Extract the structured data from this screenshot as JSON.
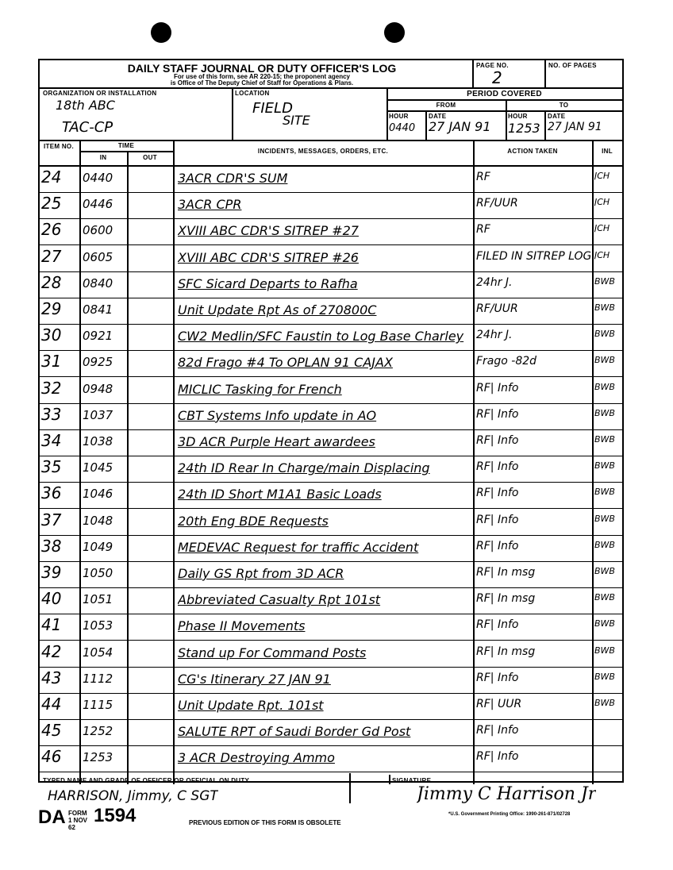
{
  "form": {
    "title": "DAILY STAFF JOURNAL OR DUTY OFFICER'S LOG",
    "subtitle1": "For use of this form, see AR 220-15; the proponent agency",
    "subtitle2": "is Office of The Deputy Chief of Staff for Operations & Plans.",
    "page_no_label": "PAGE NO.",
    "page_no": "2",
    "no_of_pages_label": "NO. OF PAGES",
    "no_of_pages": "",
    "org_label": "ORGANIZATION OR INSTALLATION",
    "org_line1": "18th ABC",
    "org_line2": "TAC-CP",
    "location_label": "LOCATION",
    "location_line1": "FIELD",
    "location_line2": "SITE",
    "period_label": "PERIOD COVERED",
    "from_label": "FROM",
    "to_label": "TO",
    "hour_label": "HOUR",
    "date_label": "DATE",
    "from_hour": "0440",
    "from_date": "27 JAN 91",
    "to_hour": "1253",
    "to_date": "27 JAN 91",
    "col_item": "ITEM NO.",
    "col_time": "TIME",
    "col_in": "IN",
    "col_out": "OUT",
    "col_incidents": "INCIDENTS, MESSAGES, ORDERS, ETC.",
    "col_action": "ACTION TAKEN",
    "col_inl": "INL",
    "name_label": "TYPED NAME AND GRADE OF OFFICER OR OFFICIAL ON DUTY",
    "name_value": "HARRISON, Jimmy, C   SGT",
    "signature_label": "SIGNATURE",
    "signature": "Jimmy C Harrison Jr",
    "form_id": "DA",
    "form_word": "FORM",
    "form_date": "1 NOV 62",
    "form_no": "1594",
    "obsolete": "PREVIOUS EDITION OF THIS FORM IS OBSOLETE",
    "printing": "*U.S. Government Printing Office: 1990-261-871/02728"
  },
  "entries": [
    {
      "item": "24",
      "in": "0440",
      "out": "",
      "text": "3ACR CDR'S SUM",
      "action": "RF",
      "inl": "JCH"
    },
    {
      "item": "25",
      "in": "0446",
      "out": "",
      "text": "3ACR CPR",
      "action": "RF/UUR",
      "inl": "JCH"
    },
    {
      "item": "26",
      "in": "0600",
      "out": "",
      "text": "XVIII ABC CDR'S SITREP #27",
      "action": "RF",
      "inl": "JCH"
    },
    {
      "item": "27",
      "in": "0605",
      "out": "",
      "text": "XVIII ABC CDR'S SITREP #26",
      "action": "FILED IN SITREP LOG",
      "inl": "JCH"
    },
    {
      "item": "28",
      "in": "0840",
      "out": "",
      "text": "SFC Sicard Departs to Rafha",
      "action": "24hr J.",
      "inl": "BWB"
    },
    {
      "item": "29",
      "in": "0841",
      "out": "",
      "text": "Unit Update Rpt As of 270800C",
      "action": "RF/UUR",
      "inl": "BWB"
    },
    {
      "item": "30",
      "in": "0921",
      "out": "",
      "text": "CW2 Medlin/SFC Faustin to Log Base Charley",
      "action": "24hr J.",
      "inl": "BWB"
    },
    {
      "item": "31",
      "in": "0925",
      "out": "",
      "text": "82d Frago #4 To OPLAN 91 CAJAX",
      "action": "Frago -82d",
      "inl": "BWB"
    },
    {
      "item": "32",
      "in": "0948",
      "out": "",
      "text": "MICLIC Tasking for French",
      "action": "RF| Info",
      "inl": "BWB"
    },
    {
      "item": "33",
      "in": "1037",
      "out": "",
      "text": "CBT Systems Info update in AO",
      "action": "RF| Info",
      "inl": "BWB"
    },
    {
      "item": "34",
      "in": "1038",
      "out": "",
      "text": "3D ACR Purple Heart awardees",
      "action": "RF| Info",
      "inl": "BWB"
    },
    {
      "item": "35",
      "in": "1045",
      "out": "",
      "text": "24th ID Rear In Charge/main Displacing",
      "action": "RF| Info",
      "inl": "BWB"
    },
    {
      "item": "36",
      "in": "1046",
      "out": "",
      "text": "24th ID Short M1A1 Basic Loads",
      "action": "RF| Info",
      "inl": "BWB"
    },
    {
      "item": "37",
      "in": "1048",
      "out": "",
      "text": "20th Eng BDE Requests",
      "action": "RF| Info",
      "inl": "BWB"
    },
    {
      "item": "38",
      "in": "1049",
      "out": "",
      "text": "MEDEVAC Request for traffic Accident",
      "action": "RF| Info",
      "inl": "BWB"
    },
    {
      "item": "39",
      "in": "1050",
      "out": "",
      "text": "Daily GS Rpt from 3D ACR",
      "action": "RF| In msg",
      "inl": "BWB"
    },
    {
      "item": "40",
      "in": "1051",
      "out": "",
      "text": "Abbreviated Casualty Rpt 101st",
      "action": "RF| In msg",
      "inl": "BWB"
    },
    {
      "item": "41",
      "in": "1053",
      "out": "",
      "text": "Phase II Movements",
      "action": "RF| Info",
      "inl": "BWB"
    },
    {
      "item": "42",
      "in": "1054",
      "out": "",
      "text": "Stand up For Command Posts",
      "action": "RF| In msg",
      "inl": "BWB"
    },
    {
      "item": "43",
      "in": "1112",
      "out": "",
      "text": "CG's Itinerary 27 JAN 91",
      "action": "RF| Info",
      "inl": "BWB"
    },
    {
      "item": "44",
      "in": "1115",
      "out": "",
      "text": "Unit Update Rpt. 101st",
      "action": "RF| UUR",
      "inl": "BWB"
    },
    {
      "item": "45",
      "in": "1252",
      "out": "",
      "text": "SALUTE RPT of Saudi Border Gd Post",
      "action": "RF| Info",
      "inl": ""
    },
    {
      "item": "46",
      "in": "1253",
      "out": "",
      "text": "3 ACR Destroying Ammo",
      "action": "RF| Info",
      "inl": ""
    }
  ]
}
